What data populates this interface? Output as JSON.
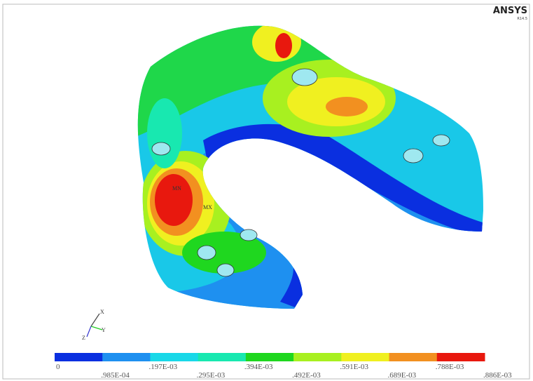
{
  "header": {
    "brand": "ANSYS",
    "version": "R14.5"
  },
  "model": {
    "min_label": "MN",
    "max_label": "MX"
  },
  "triad": {
    "x": "X",
    "y": "Y",
    "z": "Z"
  },
  "legend": {
    "labels": [
      "0",
      ".985E-04",
      ".197E-03",
      ".295E-03",
      ".394E-03",
      ".492E-03",
      ".591E-03",
      ".689E-03",
      ".788E-03",
      ".886E-03"
    ],
    "colors": [
      "#0a2fe0",
      "#1e90f0",
      "#19d8e8",
      "#18e8b0",
      "#1fd71f",
      "#a8f020",
      "#f0f020",
      "#f29020",
      "#e8180e"
    ]
  }
}
